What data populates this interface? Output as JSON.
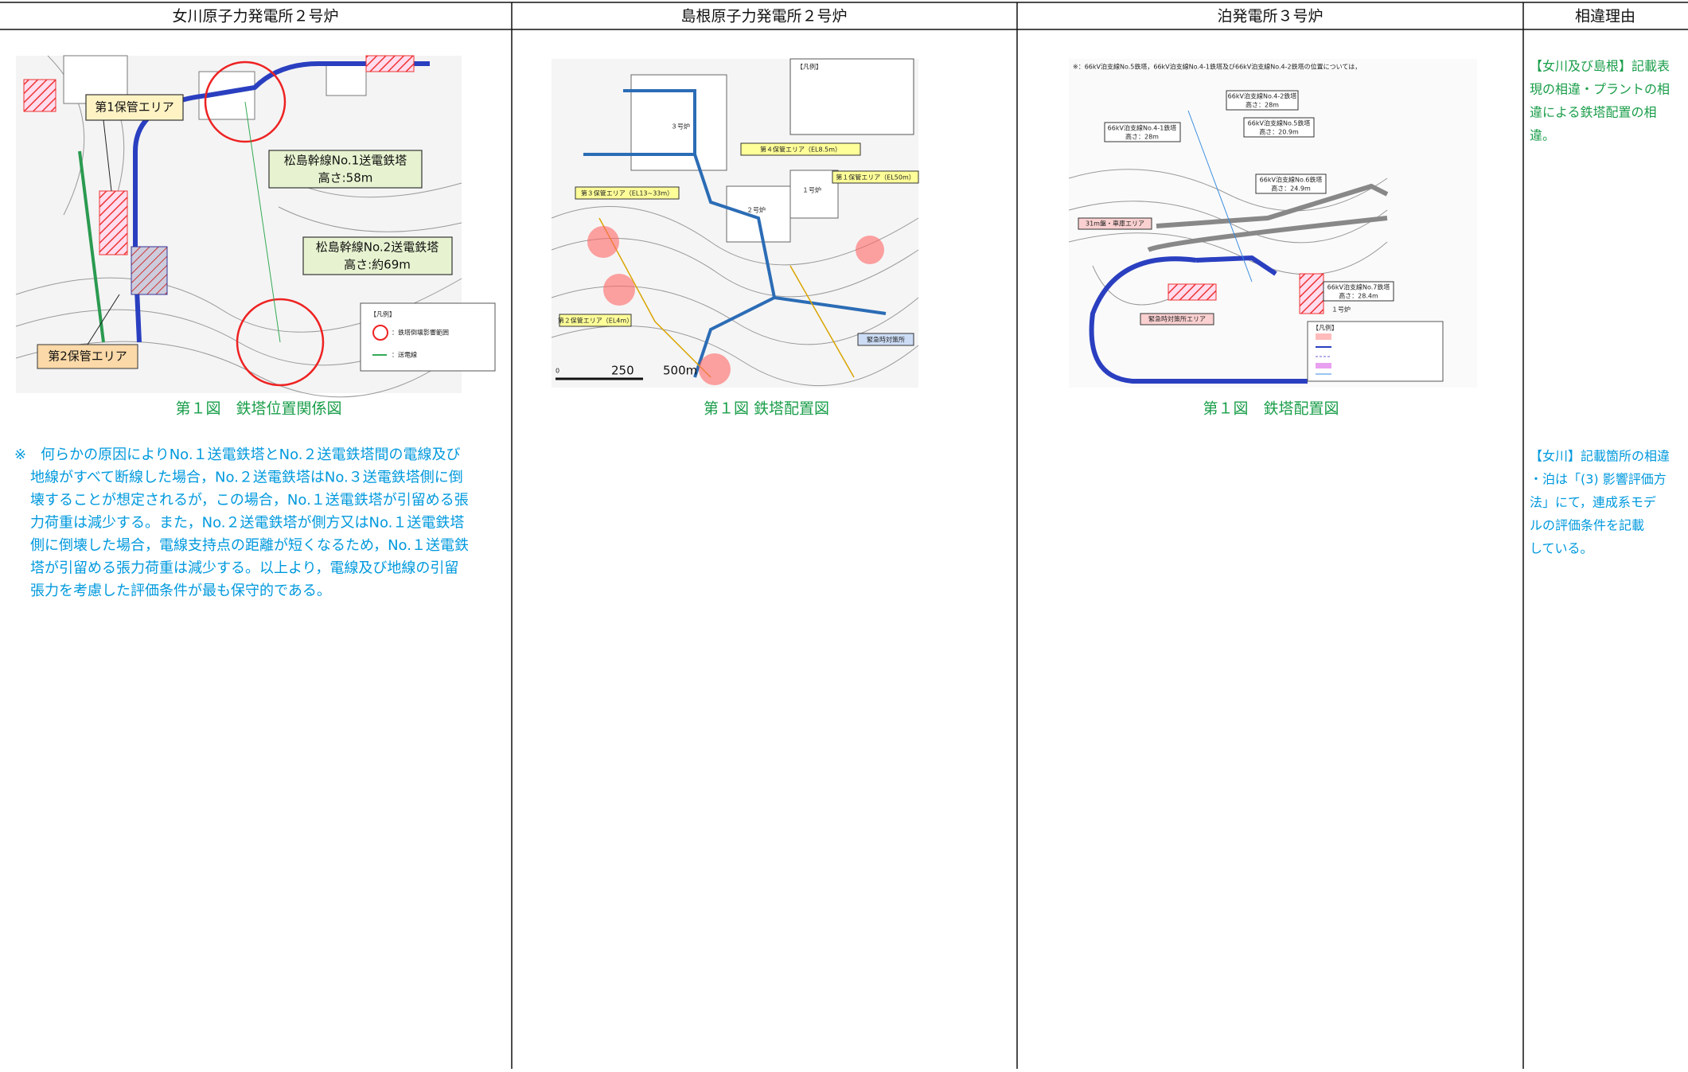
{
  "header": {
    "columns": [
      "女川原子力発電所２号炉",
      "島根原子力発電所２号炉",
      "泊発電所３号炉",
      "相違理由"
    ]
  },
  "onagawa": {
    "figure": {
      "area1": "第1保管エリア",
      "tower1": "松島幹線No.1送電鉄塔",
      "tower1_height": "高さ:58m",
      "tower2": "松島幹線No.2送電鉄塔",
      "tower2_height": "高さ:約69m",
      "area2": "第2保管エリア",
      "legend_title": "【凡例】",
      "legend_range": "：鉄塔倒壊影響範囲",
      "legend_line": "：送電線"
    },
    "caption": "第１図　鉄塔位置関係図",
    "note": [
      "※　何らかの原因によりNo.１送電鉄塔とNo.２送電鉄塔間の電線及び",
      "地線がすべて断線した場合，No.２送電鉄塔はNo.３送電鉄塔側に倒",
      "壊することが想定されるが，この場合，No.１送電鉄塔が引留める張",
      "力荷重は減少する。また，No.２送電鉄塔が側方又はNo.１送電鉄塔",
      "側に倒壊した場合，電線支持点の距離が短くなるため，No.１送電鉄",
      "塔が引留める張力荷重は減少する。以上より，電線及び地線の引留",
      "張力を考慮した評価条件が最も保守的である。"
    ]
  },
  "shimane": {
    "figure": {
      "area4": "第４保管エリア（EL8.5m）",
      "area1": "第１保管エリア（EL50m）",
      "area3": "第３保管エリア（EL13~33m）",
      "area2": "第２保管エリア（EL4m）",
      "emergency": "緊急時対策所",
      "unit1": "１号炉",
      "unit2": "２号炉",
      "unit3": "３号炉",
      "legend_title": "【凡例】",
      "scale0": "0",
      "scale1": "250",
      "scale2": "500m"
    },
    "caption": "第１図 鉄塔配置図"
  },
  "tomari": {
    "figure": {
      "note": "※：66kV泊支線No.5鉄塔，66kV泊支線No.4-1鉄塔及び66kV泊支線No.4-2鉄塔の位置については，",
      "tower42": "66kV泊支線No.4-2鉄塔",
      "tower42_height": "高さ：28m",
      "tower41": "66kV泊支線No.4-1鉄塔",
      "tower41_height": "高さ：28m",
      "tower5": "66kV泊支線No.5鉄塔",
      "tower5_height": "高さ：20.9m",
      "tower6": "66kV泊支線No.6鉄塔",
      "tower6_height": "高さ：24.9m",
      "tower7": "66kV泊支線No.7鉄塔",
      "tower7_height": "高さ：28.4m",
      "unit1": "１号炉",
      "area31": "31m盤・車庫エリア",
      "emergency": "緊急時対策所エリア",
      "legend_title": "【凡例】"
    },
    "caption": "第１図　鉄塔配置図"
  },
  "reasons": [
    [
      "【女川及び島根】記載表",
      "現の相違・プラントの相",
      "違による鉄塔配置の相",
      "違。"
    ],
    [
      "【女川】記載箇所の相違",
      "・泊は「(3) 影響評価方",
      "法」にて，連成系モデ",
      "ルの評価条件を記載",
      "している。"
    ]
  ]
}
